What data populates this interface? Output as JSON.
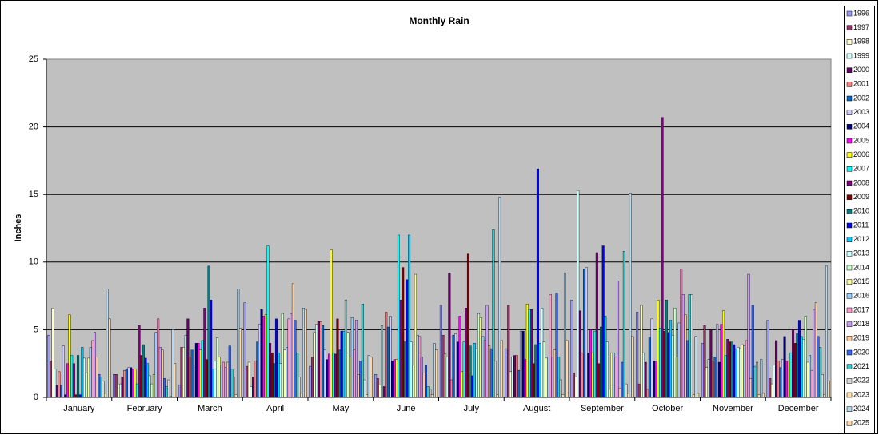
{
  "chart_data": {
    "type": "bar",
    "title": "Monthly Rain",
    "y_label": "Inches",
    "categories": [
      "January",
      "February",
      "March",
      "April",
      "May",
      "June",
      "July",
      "August",
      "September",
      "October",
      "November",
      "December"
    ],
    "ylim": [
      0,
      25
    ],
    "yticks": [
      0,
      5,
      10,
      15,
      20,
      25
    ],
    "grid": true,
    "legend": "right",
    "series": [
      {
        "name": "1996",
        "color": "#9999FF",
        "values": [
          4.6,
          1.7,
          0.9,
          7.0,
          2.3,
          1.7,
          6.8,
          3.6,
          7.2,
          6.3,
          4.0,
          5.7
        ]
      },
      {
        "name": "1997",
        "color": "#993366",
        "values": [
          2.7,
          1.7,
          3.7,
          2.3,
          3.0,
          1.4,
          4.6,
          6.8,
          1.8,
          1.0,
          5.3,
          1.4
        ]
      },
      {
        "name": "1998",
        "color": "#FFFFCC",
        "values": [
          6.6,
          0.9,
          3.7,
          2.6,
          4.8,
          0.9,
          3.2,
          1.9,
          1.5,
          6.8,
          2.2,
          1.0
        ]
      },
      {
        "name": "1999",
        "color": "#CCFFFF",
        "values": [
          2.1,
          1.0,
          4.6,
          0.8,
          5.4,
          5.3,
          3.0,
          3.0,
          15.3,
          3.3,
          2.8,
          2.4
        ]
      },
      {
        "name": "2000",
        "color": "#660066",
        "values": [
          0.9,
          1.5,
          5.8,
          1.5,
          5.6,
          0.8,
          9.2,
          3.1,
          6.4,
          2.6,
          5.0,
          4.2
        ]
      },
      {
        "name": "2001",
        "color": "#FF8080",
        "values": [
          1.9,
          2.0,
          3.0,
          2.7,
          5.6,
          6.3,
          1.3,
          3.1,
          3.3,
          0.6,
          2.7,
          2.7
        ]
      },
      {
        "name": "2002",
        "color": "#0066CC",
        "values": [
          0.9,
          2.1,
          3.5,
          4.1,
          5.3,
          5.2,
          4.6,
          2.0,
          9.5,
          4.4,
          3.0,
          2.2
        ]
      },
      {
        "name": "2003",
        "color": "#CCCCFF",
        "values": [
          3.8,
          2.2,
          2.4,
          5.4,
          3.5,
          6.0,
          4.7,
          4.9,
          9.6,
          5.8,
          5.4,
          2.8
        ]
      },
      {
        "name": "2004",
        "color": "#000080",
        "values": [
          0.2,
          2.2,
          4.0,
          6.5,
          2.8,
          2.7,
          4.1,
          4.9,
          3.3,
          2.7,
          2.6,
          4.5
        ]
      },
      {
        "name": "2005",
        "color": "#FF00FF",
        "values": [
          2.5,
          2.1,
          4.0,
          6.0,
          3.2,
          2.8,
          6.0,
          2.8,
          5.0,
          2.7,
          5.4,
          2.7
        ]
      },
      {
        "name": "2006",
        "color": "#FFFF00",
        "values": [
          6.1,
          2.1,
          3.5,
          6.1,
          10.9,
          2.8,
          1.9,
          6.9,
          3.3,
          7.2,
          6.4,
          2.7
        ]
      },
      {
        "name": "2007",
        "color": "#00FFFF",
        "values": [
          3.1,
          1.0,
          4.2,
          11.2,
          3.3,
          12.0,
          4.1,
          6.5,
          4.9,
          5.1,
          3.1,
          3.3
        ]
      },
      {
        "name": "2008",
        "color": "#800080",
        "values": [
          2.5,
          5.3,
          6.6,
          4.0,
          3.2,
          7.2,
          6.6,
          6.5,
          10.7,
          20.7,
          4.3,
          5.0
        ]
      },
      {
        "name": "2009",
        "color": "#800000",
        "values": [
          0.2,
          3.1,
          2.8,
          3.3,
          5.8,
          9.6,
          10.6,
          2.5,
          2.5,
          4.9,
          4.1,
          4.0
        ]
      },
      {
        "name": "2010",
        "color": "#008080",
        "values": [
          3.1,
          3.9,
          9.7,
          2.5,
          3.5,
          4.1,
          3.8,
          3.9,
          5.2,
          7.2,
          4.1,
          4.7
        ]
      },
      {
        "name": "2011",
        "color": "#0000FF",
        "values": [
          0.2,
          2.9,
          7.2,
          5.8,
          4.9,
          8.7,
          1.6,
          16.9,
          11.2,
          4.8,
          3.9,
          5.7
        ]
      },
      {
        "name": "2012",
        "color": "#00CCFF",
        "values": [
          3.7,
          2.5,
          2.1,
          3.3,
          4.9,
          12.0,
          4.0,
          4.0,
          6.0,
          5.7,
          3.6,
          4.5
        ]
      },
      {
        "name": "2013",
        "color": "#CCFFFF",
        "values": [
          2.9,
          1.6,
          2.7,
          2.5,
          7.2,
          4.1,
          3.6,
          6.6,
          4.1,
          4.6,
          3.7,
          4.3
        ]
      },
      {
        "name": "2014",
        "color": "#CCFFCC",
        "values": [
          1.8,
          1.0,
          4.4,
          6.2,
          4.8,
          2.4,
          6.2,
          4.1,
          0.6,
          6.6,
          3.6,
          6.0
        ]
      },
      {
        "name": "2015",
        "color": "#FFFF99",
        "values": [
          2.9,
          1.7,
          3.0,
          3.5,
          3.0,
          9.1,
          5.9,
          2.9,
          3.3,
          3.0,
          3.9,
          2.6
        ]
      },
      {
        "name": "2016",
        "color": "#99CCFF",
        "values": [
          3.7,
          4.8,
          2.4,
          3.7,
          5.9,
          4.6,
          4.5,
          3.0,
          3.3,
          5.5,
          3.8,
          3.1
        ]
      },
      {
        "name": "2017",
        "color": "#FF99CC",
        "values": [
          4.2,
          5.8,
          2.6,
          5.8,
          3.5,
          4.5,
          4.2,
          7.6,
          3.0,
          9.5,
          4.2,
          2.0
        ]
      },
      {
        "name": "2018",
        "color": "#CC99FF",
        "values": [
          4.8,
          3.7,
          2.2,
          6.2,
          5.7,
          3.0,
          6.8,
          3.0,
          8.6,
          7.6,
          9.1,
          6.5
        ]
      },
      {
        "name": "2019",
        "color": "#FFCC99",
        "values": [
          3.0,
          3.5,
          2.6,
          8.4,
          1.7,
          1.8,
          3.8,
          3.5,
          0.7,
          6.1,
          1.4,
          7.0
        ]
      },
      {
        "name": "2020",
        "color": "#3366FF",
        "values": [
          1.7,
          1.4,
          3.8,
          5.7,
          2.7,
          2.4,
          3.6,
          7.7,
          2.6,
          4.2,
          6.8,
          4.5
        ]
      },
      {
        "name": "2021",
        "color": "#33CCCC",
        "values": [
          1.5,
          0.8,
          2.1,
          3.3,
          6.9,
          0.8,
          12.4,
          3.0,
          10.8,
          7.6,
          2.3,
          3.7
        ]
      },
      {
        "name": "2022",
        "color": "#D9D9D9",
        "values": [
          1.2,
          1.3,
          1.5,
          1.5,
          1.3,
          0.6,
          2.7,
          1.3,
          1.0,
          7.6,
          2.6,
          1.7
        ]
      },
      {
        "name": "2023",
        "color": "#FFE0A0",
        "values": [
          0.3,
          0.1,
          0.2,
          0.3,
          0.2,
          0.2,
          0.2,
          0.2,
          0.3,
          0.2,
          0.2,
          0.2
        ]
      },
      {
        "name": "2024",
        "color": "#B8D8F0",
        "values": [
          8.0,
          5.0,
          8.0,
          6.6,
          3.1,
          4.0,
          14.8,
          9.2,
          15.1,
          4.5,
          2.8,
          9.7
        ]
      },
      {
        "name": "2025",
        "color": "#FFD8A8",
        "values": [
          5.8,
          2.5,
          5.1,
          6.5,
          3.0,
          3.5,
          4.2,
          4.2,
          4.5,
          0.3,
          0.3,
          1.2
        ]
      }
    ]
  }
}
